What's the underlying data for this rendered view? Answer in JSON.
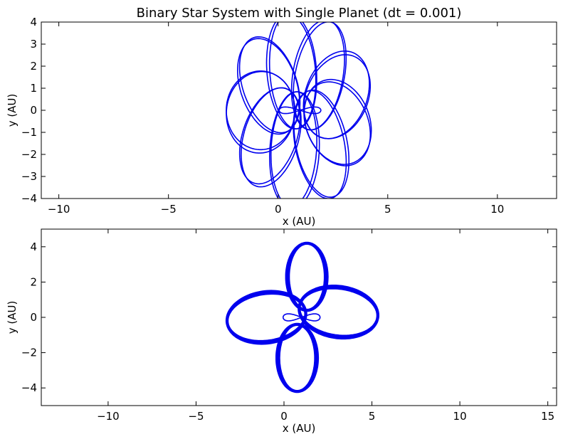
{
  "figure_title": "Binary Star System with Single Planet (dt = 0.001)",
  "colors": {
    "orbit": "#0000ee",
    "axes": "#000000",
    "background": "#ffffff"
  },
  "chart_data": [
    {
      "type": "line",
      "title": "Binary Star System with Single Planet (dt = 0.001)",
      "xlabel": "x (AU)",
      "ylabel": "y (AU)",
      "xlim": [
        -10.8,
        12.7
      ],
      "ylim": [
        -4,
        4
      ],
      "xticks": [
        -10,
        -5,
        0,
        5,
        10
      ],
      "xtick_labels": [
        "−10",
        "−5",
        "0",
        "5",
        "10"
      ],
      "yticks": [
        -4,
        -3,
        -2,
        -1,
        0,
        1,
        2,
        3,
        4
      ],
      "ytick_labels": [
        "−4",
        "−3",
        "−2",
        "−1",
        "0",
        "1",
        "2",
        "3",
        "4"
      ],
      "grid": false,
      "series": [
        {
          "kind": "rosette",
          "center": [
            1.0,
            0.0
          ],
          "a": 1.7,
          "b": 1.15,
          "r": 1.8,
          "petals": 9,
          "phase": 0.35,
          "strands": 2
        },
        {
          "kind": "figure8",
          "x_min": 0.05,
          "x_max": 1.95,
          "amp": 0.15
        }
      ]
    },
    {
      "type": "line",
      "title": "",
      "xlabel": "x (AU)",
      "ylabel": "y (AU)",
      "xlim": [
        -13.8,
        15.5
      ],
      "ylim": [
        -5,
        5
      ],
      "xticks": [
        -10,
        -5,
        0,
        5,
        10,
        15
      ],
      "xtick_labels": [
        "−10",
        "−5",
        "0",
        "5",
        "10",
        "15"
      ],
      "yticks": [
        -4,
        -2,
        0,
        2,
        4
      ],
      "ytick_labels": [
        "−4",
        "−2",
        "0",
        "2",
        "4"
      ],
      "grid": false,
      "series": [
        {
          "kind": "lobe",
          "center": [
            1.3,
            2.3
          ],
          "a": 1.85,
          "b": 1.0,
          "angle": 90
        },
        {
          "kind": "lobe",
          "center": [
            0.75,
            -2.3
          ],
          "a": 1.85,
          "b": 1.0,
          "angle": 90
        },
        {
          "kind": "lobe",
          "center": [
            -1.0,
            0.0
          ],
          "a": 2.2,
          "b": 1.3,
          "angle": 8
        },
        {
          "kind": "lobe",
          "center": [
            3.1,
            0.3
          ],
          "a": 2.2,
          "b": 1.3,
          "angle": -8
        },
        {
          "kind": "figure8",
          "x_min": -0.05,
          "x_max": 2.05,
          "amp": 0.2
        }
      ]
    }
  ]
}
